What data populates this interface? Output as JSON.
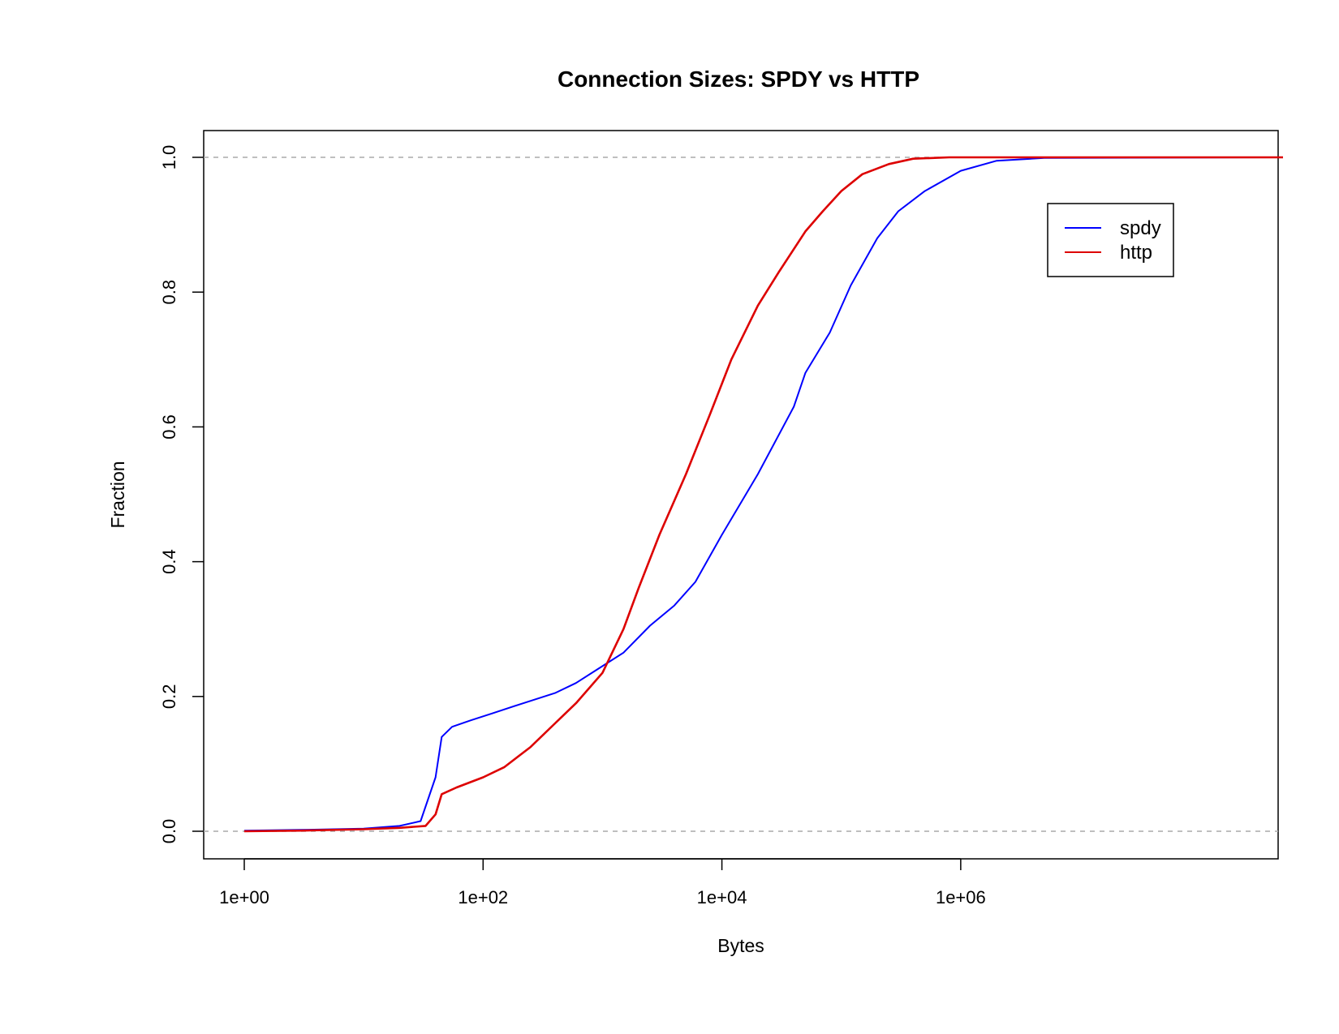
{
  "chart_data": {
    "type": "line",
    "title": "Connection Sizes: SPDY vs HTTP",
    "xlabel": "Bytes",
    "ylabel": "Fraction",
    "x_scale": "log10",
    "xlim": [
      1,
      500000000
    ],
    "ylim": [
      0,
      1
    ],
    "x_ticks": [
      {
        "value": 1,
        "label": "1e+00"
      },
      {
        "value": 100,
        "label": "1e+02"
      },
      {
        "value": 10000,
        "label": "1e+04"
      },
      {
        "value": 1000000,
        "label": "1e+06"
      }
    ],
    "y_ticks": [
      {
        "value": 0.0,
        "label": "0.0"
      },
      {
        "value": 0.2,
        "label": "0.2"
      },
      {
        "value": 0.4,
        "label": "0.4"
      },
      {
        "value": 0.6,
        "label": "0.6"
      },
      {
        "value": 0.8,
        "label": "0.8"
      },
      {
        "value": 1.0,
        "label": "1.0"
      }
    ],
    "reference_lines": [
      0,
      1
    ],
    "grid": false,
    "legend": {
      "position": "top-right"
    },
    "series": [
      {
        "name": "spdy",
        "color": "#0000ff",
        "points": [
          [
            1,
            0.001
          ],
          [
            3,
            0.002
          ],
          [
            10,
            0.004
          ],
          [
            20,
            0.008
          ],
          [
            30,
            0.015
          ],
          [
            40,
            0.08
          ],
          [
            45,
            0.14
          ],
          [
            55,
            0.155
          ],
          [
            80,
            0.165
          ],
          [
            120,
            0.175
          ],
          [
            200,
            0.188
          ],
          [
            400,
            0.205
          ],
          [
            600,
            0.22
          ],
          [
            900,
            0.24
          ],
          [
            1500,
            0.265
          ],
          [
            2500,
            0.305
          ],
          [
            4000,
            0.335
          ],
          [
            6000,
            0.37
          ],
          [
            10000,
            0.44
          ],
          [
            20000,
            0.53
          ],
          [
            40000,
            0.63
          ],
          [
            50000,
            0.68
          ],
          [
            80000,
            0.74
          ],
          [
            120000,
            0.81
          ],
          [
            200000,
            0.88
          ],
          [
            300000,
            0.92
          ],
          [
            500000,
            0.95
          ],
          [
            1000000,
            0.98
          ],
          [
            2000000,
            0.995
          ],
          [
            5000000,
            0.999
          ],
          [
            500000000,
            1.0
          ]
        ]
      },
      {
        "name": "http",
        "color": "#dd0000",
        "points": [
          [
            1,
            0.0
          ],
          [
            3,
            0.001
          ],
          [
            10,
            0.003
          ],
          [
            20,
            0.005
          ],
          [
            33,
            0.008
          ],
          [
            40,
            0.025
          ],
          [
            45,
            0.055
          ],
          [
            60,
            0.065
          ],
          [
            100,
            0.08
          ],
          [
            150,
            0.095
          ],
          [
            250,
            0.125
          ],
          [
            400,
            0.16
          ],
          [
            600,
            0.19
          ],
          [
            1000,
            0.235
          ],
          [
            1500,
            0.3
          ],
          [
            2000,
            0.36
          ],
          [
            3000,
            0.44
          ],
          [
            5000,
            0.53
          ],
          [
            8000,
            0.62
          ],
          [
            12000,
            0.7
          ],
          [
            20000,
            0.78
          ],
          [
            30000,
            0.83
          ],
          [
            50000,
            0.89
          ],
          [
            70000,
            0.92
          ],
          [
            100000,
            0.95
          ],
          [
            150000,
            0.975
          ],
          [
            250000,
            0.99
          ],
          [
            400000,
            0.998
          ],
          [
            800000,
            1.0
          ],
          [
            500000000,
            1.0
          ]
        ]
      }
    ]
  }
}
